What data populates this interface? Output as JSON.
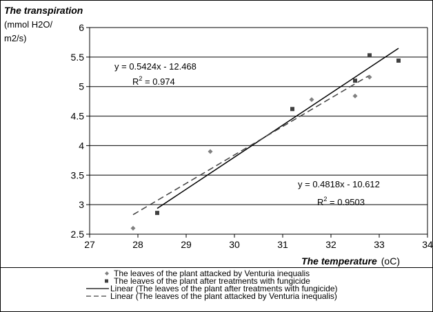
{
  "chart_data": {
    "type": "scatter",
    "title": "",
    "ylabel_title": "The transpiration",
    "ylabel_unit_line1": "(mmol H2O/",
    "ylabel_unit_line2": "m2/s)",
    "xlabel_title": "The temperature",
    "xlabel_unit": "(oC)",
    "xlim": [
      27,
      34
    ],
    "ylim": [
      2.5,
      6
    ],
    "x_ticks": [
      "27",
      "28",
      "29",
      "30",
      "31",
      "32",
      "33",
      "34"
    ],
    "y_ticks": [
      "2.5",
      "3",
      "3.5",
      "4",
      "4.5",
      "5",
      "5.5",
      "6"
    ],
    "grid": "horizontal",
    "legend_position": "bottom",
    "series": [
      {
        "name": "The leaves of the plant attacked by Venturia inequalis",
        "marker": "diamond",
        "color": "#808080",
        "points": [
          [
            27.9,
            2.6
          ],
          [
            29.5,
            3.9
          ],
          [
            31.6,
            4.78
          ],
          [
            32.5,
            4.84
          ],
          [
            32.8,
            5.16
          ]
        ]
      },
      {
        "name": "The leaves of the plant after treatments with fungicide",
        "marker": "square",
        "color": "#404040",
        "points": [
          [
            28.4,
            2.86
          ],
          [
            31.2,
            4.62
          ],
          [
            32.5,
            5.1
          ],
          [
            32.8,
            5.53
          ],
          [
            33.4,
            5.44
          ]
        ]
      }
    ],
    "trendlines": [
      {
        "name": "Linear (The leaves of the plant after treatments with fungicide)",
        "style": "solid",
        "color": "#000000",
        "slope": 0.5424,
        "intercept": -12.468,
        "x_range": [
          28.4,
          33.4
        ],
        "equation": "y = 0.5424x - 12.468",
        "r2_prefix": "R",
        "r2_sup": "2",
        "r2_value": " = 0.974"
      },
      {
        "name": "Linear (The leaves of the plant attacked by Venturia inequalis)",
        "style": "dashed",
        "color": "#404040",
        "slope": 0.4818,
        "intercept": -10.612,
        "x_range": [
          27.9,
          32.8
        ],
        "equation": "y = 0.4818x - 10.612",
        "r2_prefix": "R",
        "r2_sup": "2",
        "r2_value": " = 0.9503"
      }
    ]
  }
}
